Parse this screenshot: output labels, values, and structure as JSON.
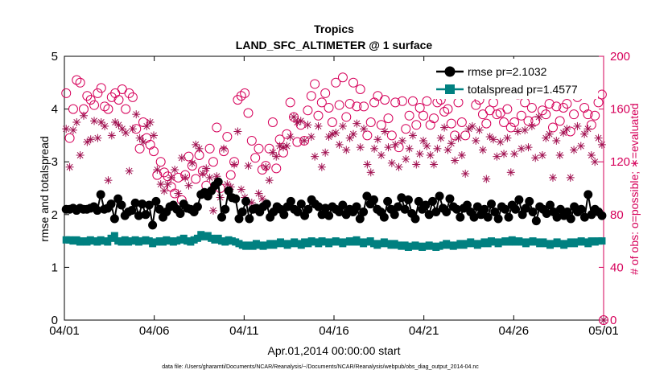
{
  "chart_data": {
    "type": "line",
    "title": "Tropics",
    "subtitle": "LAND_SFC_ALTIMETER @ 1 surface",
    "xlabel": "Apr.01,2014 00:00:00 start",
    "ylabel": "rmse and totalspread",
    "ylabel_right": "# of obs: o=possible; ∗=evaluated",
    "x_tick_labels": [
      "04/01",
      "04/06",
      "04/11",
      "04/16",
      "04/21",
      "04/26",
      "05/01"
    ],
    "xlim_days": [
      0,
      30
    ],
    "ylim": [
      0,
      5
    ],
    "y_ticks": [
      "0",
      "1",
      "2",
      "3",
      "4",
      "5"
    ],
    "ylim_right": [
      0,
      200
    ],
    "y_ticks_right": [
      "0",
      "40",
      "80",
      "120",
      "160",
      "200"
    ],
    "legend_position": "top-right",
    "footnote": "data file: /Users/gharamti/Documents/NCAR/Reanalysis/~/Documents/NCAR/Reanalysis/webpub/obs_diag_output_2014-04.nc",
    "series": [
      {
        "name": "rmse",
        "legend": "rmse pr=2.1032",
        "color": "#000000",
        "marker": "filled-circle",
        "axis": "left",
        "values": [
          2.1,
          2.1,
          2.12,
          2.08,
          2.12,
          2.1,
          2.1,
          2.12,
          2.15,
          2.08,
          2.38,
          2.1,
          2.12,
          2.2,
          1.92,
          2.3,
          2.18,
          1.98,
          2.05,
          2.08,
          2.22,
          1.98,
          2.2,
          2.0,
          2.18,
          1.8,
          2.25,
          2.1,
          1.95,
          2.05,
          2.15,
          2.18,
          2.1,
          2.02,
          2.2,
          2.12,
          2.1,
          2.05,
          2.15,
          2.38,
          2.42,
          2.35,
          2.45,
          2.55,
          2.62,
          1.95,
          2.1,
          2.45,
          2.32,
          2.3,
          1.92,
          2.05,
          2.25,
          1.92,
          2.1,
          2.12,
          2.05,
          2.15,
          2.2,
          1.95,
          2.05,
          2.15,
          2.1,
          2.0,
          2.15,
          2.25,
          2.1,
          2.05,
          2.2,
          1.98,
          2.1,
          2.28,
          2.2,
          2.15,
          2.0,
          2.12,
          1.98,
          2.15,
          2.1,
          2.05,
          2.18,
          2.0,
          2.1,
          2.05,
          2.15,
          1.92,
          2.05,
          2.35,
          2.2,
          2.28,
          2.1,
          2.05,
          1.95,
          2.25,
          2.1,
          2.0,
          2.15,
          2.32,
          2.1,
          2.28,
          2.02,
          1.92,
          2.25,
          2.1,
          2.18,
          2.0,
          2.25,
          2.05,
          2.35,
          2.12,
          2.05,
          2.3,
          2.15,
          2.1,
          1.95,
          2.12,
          2.18,
          2.05,
          1.95,
          2.15,
          2.0,
          2.1,
          1.95,
          2.2,
          2.05,
          1.92,
          2.15,
          2.1,
          1.95,
          2.18,
          2.1,
          2.28,
          2.0,
          2.12,
          2.25,
          2.05,
          1.88,
          2.15,
          2.1,
          2.02,
          2.18,
          2.05,
          1.95,
          2.1,
          1.98,
          2.05,
          1.92,
          2.15,
          2.05,
          2.1,
          1.95,
          2.38,
          2.0,
          2.1,
          2.05,
          1.98
        ]
      },
      {
        "name": "totalspread",
        "legend": "totalspread pr=1.4577",
        "color": "#008080",
        "marker": "filled-square",
        "axis": "left",
        "values": [
          1.52,
          1.52,
          1.5,
          1.52,
          1.48,
          1.5,
          1.48,
          1.52,
          1.5,
          1.48,
          1.52,
          1.5,
          1.48,
          1.55,
          1.6,
          1.5,
          1.48,
          1.52,
          1.48,
          1.5,
          1.52,
          1.48,
          1.5,
          1.52,
          1.5,
          1.45,
          1.48,
          1.5,
          1.48,
          1.52,
          1.5,
          1.48,
          1.5,
          1.52,
          1.55,
          1.5,
          1.48,
          1.52,
          1.55,
          1.62,
          1.58,
          1.6,
          1.55,
          1.52,
          1.55,
          1.5,
          1.48,
          1.52,
          1.5,
          1.48,
          1.45,
          1.42,
          1.4,
          1.42,
          1.4,
          1.45,
          1.42,
          1.4,
          1.42,
          1.45,
          1.42,
          1.45,
          1.48,
          1.45,
          1.42,
          1.45,
          1.48,
          1.45,
          1.42,
          1.48,
          1.45,
          1.5,
          1.48,
          1.45,
          1.5,
          1.48,
          1.45,
          1.48,
          1.5,
          1.48,
          1.45,
          1.48,
          1.5,
          1.48,
          1.52,
          1.48,
          1.45,
          1.48,
          1.5,
          1.45,
          1.42,
          1.45,
          1.48,
          1.45,
          1.42,
          1.45,
          1.42,
          1.4,
          1.42,
          1.38,
          1.4,
          1.42,
          1.4,
          1.38,
          1.4,
          1.42,
          1.4,
          1.38,
          1.4,
          1.42,
          1.45,
          1.42,
          1.4,
          1.42,
          1.45,
          1.42,
          1.45,
          1.48,
          1.45,
          1.42,
          1.45,
          1.48,
          1.45,
          1.5,
          1.48,
          1.45,
          1.48,
          1.5,
          1.48,
          1.52,
          1.48,
          1.5,
          1.48,
          1.45,
          1.48,
          1.5,
          1.48,
          1.45,
          1.48,
          1.45,
          1.42,
          1.45,
          1.48,
          1.45,
          1.42,
          1.45,
          1.48,
          1.45,
          1.48,
          1.5,
          1.48,
          1.45,
          1.5,
          1.48,
          1.5,
          1.5
        ]
      },
      {
        "name": "possible",
        "legend": "o=possible",
        "color": "#d6005a",
        "marker": "open-circle",
        "axis": "right",
        "values": [
          172,
          138,
          160,
          182,
          180,
          160,
          170,
          167,
          163,
          172,
          176,
          162,
          160,
          169,
          172,
          167,
          175,
          160,
          172,
          169,
          145,
          130,
          150,
          138,
          133,
          128,
          110,
          120,
          112,
          109,
          101,
          96,
          108,
          91,
          110,
          124,
          117,
          107,
          125,
          113,
          102,
          130,
          120,
          146,
          100,
          128,
          139,
          110,
          120,
          167,
          170,
          172,
          157,
          136,
          123,
          130,
          114,
          117,
          130,
          150,
          115,
          137,
          127,
          141,
          165,
          154,
          135,
          148,
          136,
          159,
          170,
          179,
          155,
          165,
          172,
          161,
          150,
          180,
          163,
          184,
          154,
          164,
          180,
          162,
          175,
          162,
          140,
          150,
          165,
          170,
          148,
          167,
          153,
          140,
          165,
          131,
          166,
          145,
          155,
          166,
          148,
          161,
          155,
          166,
          148,
          153,
          165,
          167,
          158,
          160,
          149,
          140,
          165,
          150,
          140,
          179,
          172,
          163,
          167,
          156,
          149,
          159,
          165,
          156,
          157,
          150,
          160,
          146,
          150,
          171,
          155,
          165,
          151,
          161,
          151,
          175,
          159,
          156,
          164,
          146,
          162,
          151,
          161,
          164,
          143,
          156,
          169,
          174,
          161,
          156,
          148,
          155,
          165,
          171
        ]
      },
      {
        "name": "evaluated",
        "legend": "∗=evaluated",
        "color": "#a01050",
        "marker": "asterisk",
        "axis": "right",
        "values": [
          145,
          116,
          144,
          150,
          125,
          155,
          135,
          137,
          151,
          138,
          150,
          147,
          106,
          140,
          150,
          148,
          145,
          142,
          113,
          145,
          156,
          138,
          135,
          147,
          150,
          140,
          114,
          103,
          98,
          103,
          108,
          114,
          96,
          123,
          108,
          102,
          119,
          133,
          130,
          111,
          115,
          108,
          83,
          109,
          93,
          130,
          103,
          101,
          118,
          143,
          99,
          93,
          117,
          89,
          84,
          96,
          92,
          116,
          106,
          127,
          124,
          132,
          131,
          132,
          139,
          154,
          150,
          151,
          136,
          148,
          139,
          124,
          147,
          116,
          127,
          139,
          141,
          142,
          133,
          147,
          129,
          138,
          141,
          149,
          131,
          145,
          118,
          112,
          130,
          137,
          125,
          143,
          131,
          119,
          133,
          116,
          136,
          122,
          130,
          140,
          118,
          126,
          136,
          132,
          125,
          118,
          130,
          138,
          146,
          129,
          134,
          121,
          138,
          125,
          111,
          145,
          147,
          136,
          144,
          129,
          107,
          139,
          137,
          124,
          135,
          126,
          138,
          112,
          126,
          143,
          130,
          144,
          131,
          147,
          123,
          154,
          125,
          138,
          141,
          108,
          136,
          125,
          142,
          145,
          108,
          129,
          147,
          132,
          141,
          145,
          125,
          120,
          138,
          133
        ]
      }
    ]
  }
}
